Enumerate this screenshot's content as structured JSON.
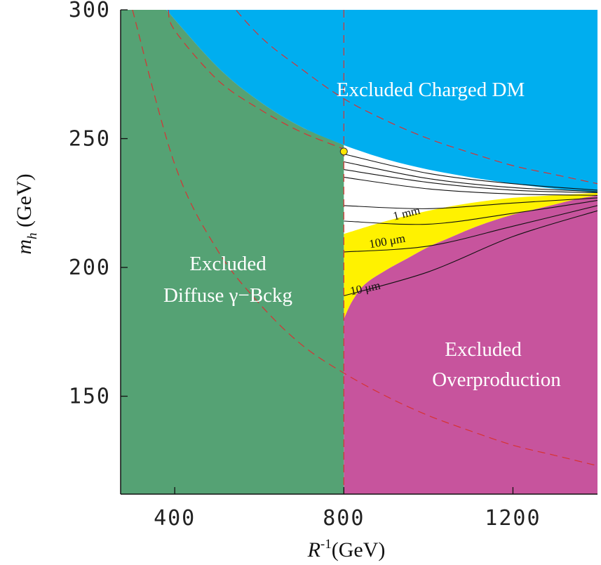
{
  "chart_data": {
    "type": "area",
    "xlabel_base": "R",
    "xlabel_sup": "-1",
    "xlabel_unit": "(GeV)",
    "ylabel_var": "m",
    "ylabel_sub": "h",
    "ylabel_unit": "(GeV)",
    "xlim": [
      272,
      1400
    ],
    "ylim": [
      112,
      300
    ],
    "xticks": [
      400,
      800,
      1200
    ],
    "yticks": [
      150,
      200,
      250,
      300
    ],
    "grid": false,
    "regions": [
      {
        "name": "Excluded Diffuse γ−Bckg",
        "label_line1": "Excluded",
        "label_line2": "Diffuse  γ−Bckg",
        "color": "#55a274"
      },
      {
        "name": "Excluded Charged DM",
        "label_line1": "Excluded Charged DM",
        "color": "#00aeef"
      },
      {
        "name": "Excluded Overproduction",
        "label_line1": "Excluded",
        "label_line2": "Overproduction",
        "color": "#c7549d"
      },
      {
        "name": "allowed displaced-vertex band",
        "color": "#fff200"
      }
    ],
    "charged_dm_boundary": {
      "x": [
        380,
        500,
        600,
        700,
        800,
        900,
        1000,
        1100,
        1200,
        1300,
        1400
      ],
      "y": [
        300,
        278,
        264.5,
        254.5,
        247.5,
        242,
        238,
        235,
        232.5,
        230.5,
        229
      ]
    },
    "overproduction_boundary": {
      "x": [
        800,
        820,
        850,
        900,
        950,
        1000,
        1050,
        1100,
        1150,
        1200,
        1250,
        1300,
        1350,
        1400
      ],
      "y": [
        180,
        187,
        193.5,
        199,
        203.5,
        208,
        211.5,
        215,
        218,
        220.5,
        222.5,
        224.5,
        226.5,
        228
      ]
    },
    "yellow_band_upper": {
      "x": [
        800,
        900,
        1000,
        1100,
        1200,
        1300,
        1400
      ],
      "y": [
        213,
        218,
        222,
        225,
        227,
        228,
        229
      ]
    },
    "lifetime_contours": [
      {
        "label": "",
        "x": [
          800,
          1000,
          1200,
          1400
        ],
        "y": [
          244,
          236.5,
          232.5,
          230
        ]
      },
      {
        "label": "",
        "x": [
          800,
          1000,
          1200,
          1400
        ],
        "y": [
          241,
          234.5,
          231,
          229.5
        ]
      },
      {
        "label": "",
        "x": [
          800,
          1000,
          1200,
          1400
        ],
        "y": [
          238,
          233,
          230,
          229
        ]
      },
      {
        "label": "",
        "x": [
          800,
          1000,
          1200,
          1400
        ],
        "y": [
          235,
          230.5,
          228.5,
          228
        ]
      },
      {
        "label": "1 mm",
        "x": [
          800,
          1000,
          1200,
          1400
        ],
        "y": [
          224,
          222.8,
          225,
          227
        ]
      },
      {
        "label": "",
        "x": [
          800,
          1000,
          1200,
          1400
        ],
        "y": [
          218,
          216.8,
          221,
          226
        ]
      },
      {
        "label": "100 μm",
        "x": [
          800,
          1000,
          1200,
          1400
        ],
        "y": [
          206,
          208.3,
          216,
          224
        ]
      },
      {
        "label": "10 μm",
        "x": [
          800,
          1000,
          1200,
          1400
        ],
        "y": [
          189,
          198.3,
          212,
          222
        ]
      }
    ],
    "dashed_curves": [
      {
        "x": [
          300,
          400,
          500,
          600,
          700,
          800,
          900,
          1000,
          1100,
          1200,
          1300,
          1400
        ],
        "y": [
          361,
          331,
          309,
          290,
          277,
          265.5,
          257,
          250,
          244.5,
          239.5,
          236,
          232.5
        ]
      },
      {
        "x": [
          385,
          400,
          500,
          600,
          700,
          800
        ],
        "y": [
          300,
          292,
          273,
          261.5,
          252.5,
          246
        ]
      },
      {
        "x": [
          300,
          400,
          500,
          600,
          700,
          800,
          900,
          1000,
          1100,
          1200,
          1300,
          1400
        ],
        "y": [
          300,
          240,
          207,
          186,
          170,
          159,
          150,
          142.5,
          136.5,
          131,
          127,
          123
        ]
      }
    ],
    "vertical_dashed_line": {
      "x": 800
    },
    "marker_point": {
      "x": 800,
      "y": 245,
      "color": "#ffe600"
    }
  }
}
